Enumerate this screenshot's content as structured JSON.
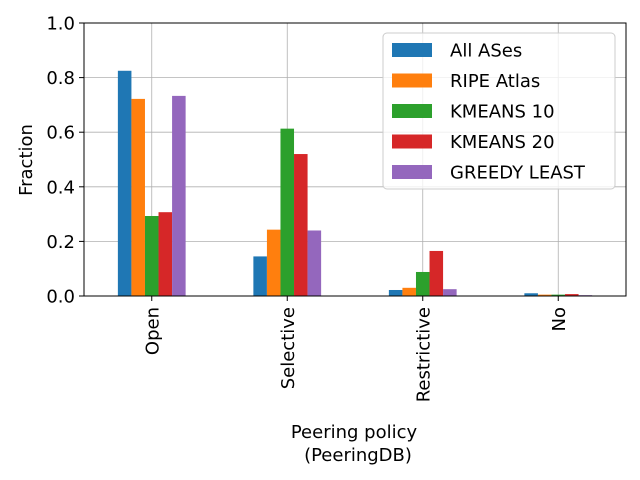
{
  "chart_data": {
    "type": "bar",
    "title": "",
    "xlabel_lines": [
      "Peering policy",
      "(PeeringDB)"
    ],
    "ylabel": "Fraction",
    "ylim": [
      0,
      1.0
    ],
    "yticks": [
      0.0,
      0.2,
      0.4,
      0.6,
      0.8,
      1.0
    ],
    "ytick_labels": [
      "0.0",
      "0.2",
      "0.4",
      "0.6",
      "0.8",
      "1.0"
    ],
    "grid": true,
    "legend_position": "top-right",
    "categories": [
      "Open",
      "Selective",
      "Restrictive",
      "No"
    ],
    "series": [
      {
        "name": "All ASes",
        "color": "#1f77b4",
        "values": [
          0.825,
          0.145,
          0.022,
          0.01
        ]
      },
      {
        "name": "RIPE Atlas",
        "color": "#ff7f0e",
        "values": [
          0.722,
          0.243,
          0.03,
          0.005
        ]
      },
      {
        "name": "KMEANS 10",
        "color": "#2ca02c",
        "values": [
          0.293,
          0.613,
          0.088,
          0.005
        ]
      },
      {
        "name": "KMEANS 20",
        "color": "#d62728",
        "values": [
          0.307,
          0.52,
          0.165,
          0.007
        ]
      },
      {
        "name": "GREEDY LEAST",
        "color": "#9467bd",
        "values": [
          0.733,
          0.24,
          0.025,
          0.003
        ]
      }
    ]
  }
}
